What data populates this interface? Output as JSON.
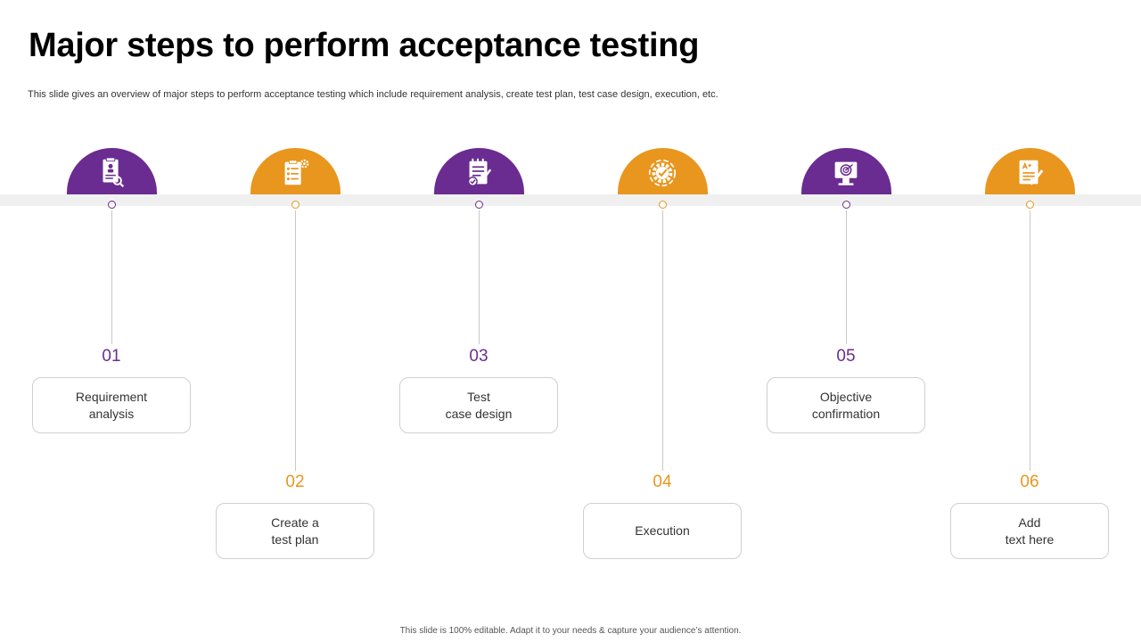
{
  "title": "Major steps to perform acceptance testing",
  "subtitle": "This slide gives an overview of major steps to perform acceptance testing which include requirement analysis, create test plan, test case design, execution, etc.",
  "colors": {
    "purple": "#6a2c91",
    "orange": "#e8961e",
    "band": "#f0f0f0"
  },
  "steps": [
    {
      "number": "01",
      "label": "Requirement\nanalysis",
      "icon": "requirement-document-icon",
      "color": "purple"
    },
    {
      "number": "02",
      "label": "Create a\ntest plan",
      "icon": "test-plan-checklist-icon",
      "color": "orange"
    },
    {
      "number": "03",
      "label": "Test\ncase design",
      "icon": "clipboard-check-icon",
      "color": "purple"
    },
    {
      "number": "04",
      "label": "Execution",
      "icon": "gear-check-icon",
      "color": "orange"
    },
    {
      "number": "05",
      "label": "Objective\nconfirmation",
      "icon": "target-monitor-icon",
      "color": "purple"
    },
    {
      "number": "06",
      "label": "Add\ntext here",
      "icon": "graded-document-icon",
      "color": "orange"
    }
  ],
  "footer": "This slide is 100% editable. Adapt it to your needs & capture your audience’s attention."
}
